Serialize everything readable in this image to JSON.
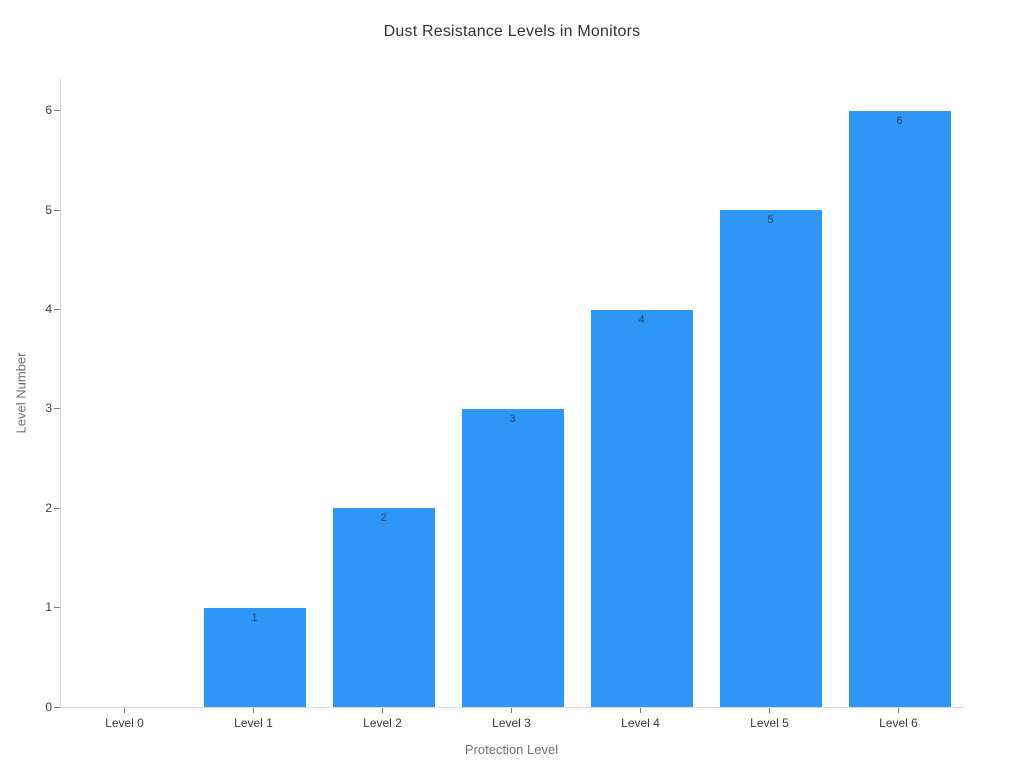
{
  "chart_data": {
    "type": "bar",
    "title": "Dust Resistance Levels in Monitors",
    "xlabel": "Protection Level",
    "ylabel": "Level Number",
    "categories": [
      "Level 0",
      "Level 1",
      "Level 2",
      "Level 3",
      "Level 4",
      "Level 5",
      "Level 6"
    ],
    "values": [
      0,
      1,
      2,
      3,
      4,
      5,
      6
    ],
    "bar_labels": [
      "",
      "1",
      "2",
      "3",
      "4",
      "5",
      "6"
    ],
    "yticks": [
      0,
      1,
      2,
      3,
      4,
      5,
      6
    ],
    "ylim": [
      0,
      6.32
    ],
    "grid": false,
    "legend": "none",
    "background": "#ffffff",
    "colors": {
      "bar": "#2e96f5",
      "axis_line": "#d9d9d9",
      "tick_mark": "#757575",
      "tick_label": "#3a3a3a",
      "title": "#313131",
      "axis_title": "#6f6f6f",
      "bar_label": "#2a3f5f"
    }
  }
}
